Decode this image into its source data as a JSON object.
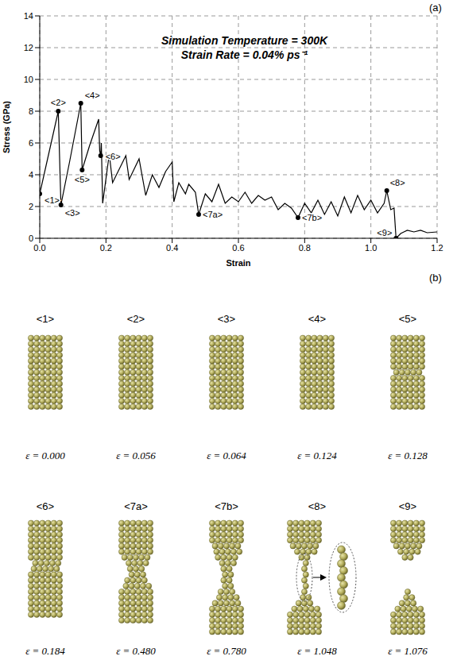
{
  "chart_data": {
    "type": "line",
    "panel_label": "(a)",
    "title": "Simulation Temperature = 300K",
    "subtitle": "Strain Rate = 0.04% ps⁻¹",
    "x_label": "Strain",
    "y_label": "Stress (GPa)",
    "xlim": [
      0,
      1.2
    ],
    "xticks": [
      {
        "value": 0,
        "label": "0.0"
      },
      {
        "value": 0.2,
        "label": "0.2"
      },
      {
        "value": 0.4,
        "label": "0.4"
      },
      {
        "value": 0.6,
        "label": "0.6"
      },
      {
        "value": 0.8,
        "label": "0.8"
      },
      {
        "value": 1.0,
        "label": "1.0"
      },
      {
        "value": 1.2,
        "label": "1.2"
      }
    ],
    "ylim": [
      0,
      14
    ],
    "yticks": [
      0,
      2,
      4,
      6,
      8,
      10,
      12,
      14
    ],
    "grid": true,
    "color": "#000000",
    "marker": "circle",
    "x": [
      0,
      0.056,
      0.064,
      0.09,
      0.124,
      0.128,
      0.15,
      0.178,
      0.181,
      0.184,
      0.186,
      0.19,
      0.21,
      0.22,
      0.26,
      0.27,
      0.3,
      0.32,
      0.34,
      0.36,
      0.38,
      0.4,
      0.405,
      0.42,
      0.44,
      0.45,
      0.47,
      0.48,
      0.5,
      0.52,
      0.54,
      0.56,
      0.58,
      0.6,
      0.62,
      0.64,
      0.66,
      0.68,
      0.7,
      0.72,
      0.74,
      0.76,
      0.78,
      0.8,
      0.82,
      0.84,
      0.86,
      0.88,
      0.9,
      0.92,
      0.94,
      0.96,
      0.98,
      1.0,
      1.02,
      1.04,
      1.048,
      1.06,
      1.07,
      1.076,
      1.09,
      1.11,
      1.13,
      1.15,
      1.17,
      1.2
    ],
    "values": [
      2.8,
      8.0,
      2.1,
      4.8,
      8.5,
      4.3,
      5.8,
      7.5,
      5.5,
      5.2,
      6.0,
      2.2,
      5.3,
      3.5,
      5.2,
      3.7,
      5.0,
      2.7,
      4.0,
      3.2,
      4.2,
      4.8,
      2.3,
      3.5,
      2.8,
      3.4,
      2.9,
      1.5,
      2.8,
      2.3,
      3.4,
      2.2,
      2.6,
      2.3,
      2.9,
      2.2,
      2.7,
      2.4,
      2.6,
      1.8,
      2.2,
      1.9,
      1.3,
      2.2,
      1.6,
      2.4,
      1.5,
      2.3,
      1.4,
      2.6,
      1.6,
      2.7,
      1.8,
      2.4,
      1.6,
      2.2,
      3.0,
      1.8,
      1.9,
      0.0,
      0.3,
      0.5,
      0.4,
      0.5,
      0.35,
      0.4
    ],
    "annotations": [
      {
        "label": "<1>",
        "x": 0,
        "y": 2.8
      },
      {
        "label": "<2>",
        "x": 0.056,
        "y": 8.0
      },
      {
        "label": "<3>",
        "x": 0.064,
        "y": 2.1
      },
      {
        "label": "<4>",
        "x": 0.124,
        "y": 8.5
      },
      {
        "label": "<5>",
        "x": 0.128,
        "y": 4.3
      },
      {
        "label": "<6>",
        "x": 0.184,
        "y": 5.2
      },
      {
        "label": "<7a>",
        "x": 0.48,
        "y": 1.5
      },
      {
        "label": "<7b>",
        "x": 0.78,
        "y": 1.3
      },
      {
        "label": "<8>",
        "x": 1.048,
        "y": 3.0
      },
      {
        "label": "<9>",
        "x": 1.076,
        "y": 0.0
      }
    ]
  },
  "panel_b": {
    "panel_label": "(b)",
    "frames": [
      {
        "label": "<1>",
        "caption": "ε = 0.000"
      },
      {
        "label": "<2>",
        "caption": "ε = 0.056"
      },
      {
        "label": "<3>",
        "caption": "ε = 0.064"
      },
      {
        "label": "<4>",
        "caption": "ε = 0.124"
      },
      {
        "label": "<5>",
        "caption": "ε = 0.128"
      },
      {
        "label": "<6>",
        "caption": "ε = 0.184"
      },
      {
        "label": "<7a>",
        "caption": "ε = 0.480"
      },
      {
        "label": "<7b>",
        "caption": "ε = 0.780"
      },
      {
        "label": "<8>",
        "caption": "ε = 1.048"
      },
      {
        "label": "<9>",
        "caption": "ε = 1.076"
      }
    ]
  }
}
